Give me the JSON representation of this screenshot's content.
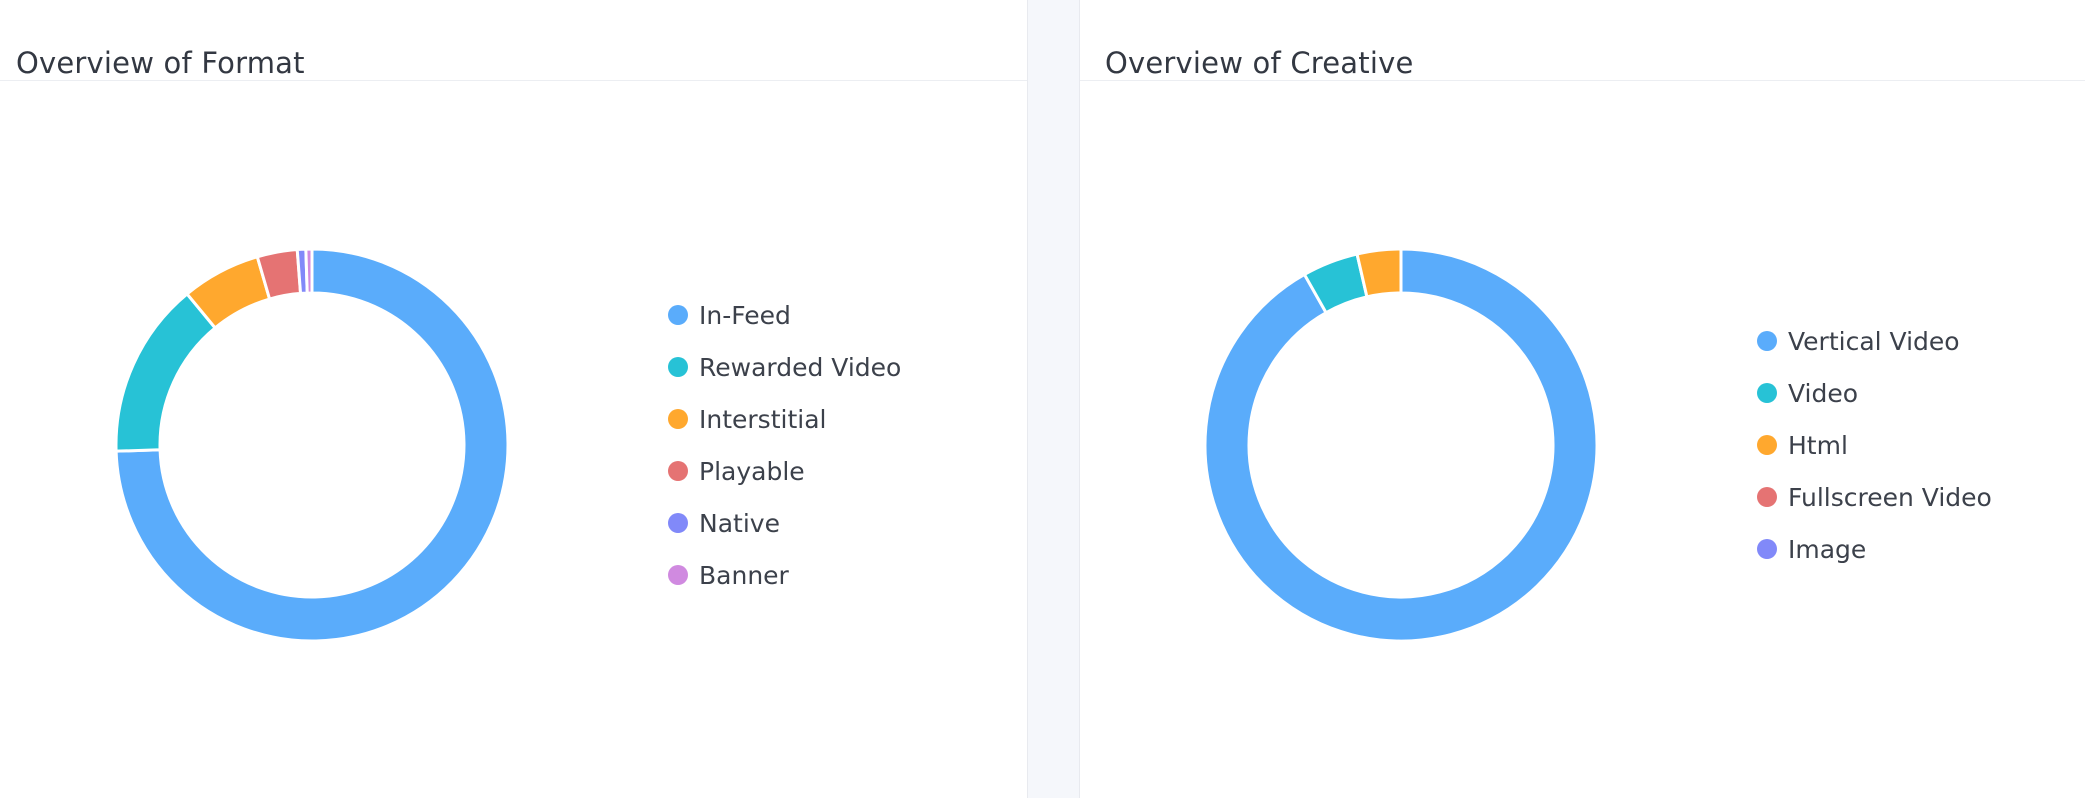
{
  "chart_data": [
    {
      "type": "pie",
      "donut": true,
      "title": "Overview of Format",
      "categories": [
        "In-Feed",
        "Rewarded Video",
        "Interstitial",
        "Playable",
        "Native",
        "Banner"
      ],
      "values": [
        74.5,
        14.5,
        6.5,
        3.3,
        0.7,
        0.5
      ],
      "colors": [
        "#5aacfb",
        "#27c2d6",
        "#ffa82e",
        "#e57373",
        "#8189f9",
        "#d08ae0"
      ],
      "legend_position": "right"
    },
    {
      "type": "pie",
      "donut": true,
      "title": "Overview of Creative",
      "categories": [
        "Vertical Video",
        "Video",
        "Html",
        "Fullscreen Video",
        "Image"
      ],
      "values": [
        91.8,
        4.6,
        3.6,
        0,
        0
      ],
      "colors": [
        "#5aacfb",
        "#27c2d6",
        "#ffa82e",
        "#e57373",
        "#8189f9"
      ],
      "legend_position": "right"
    }
  ]
}
